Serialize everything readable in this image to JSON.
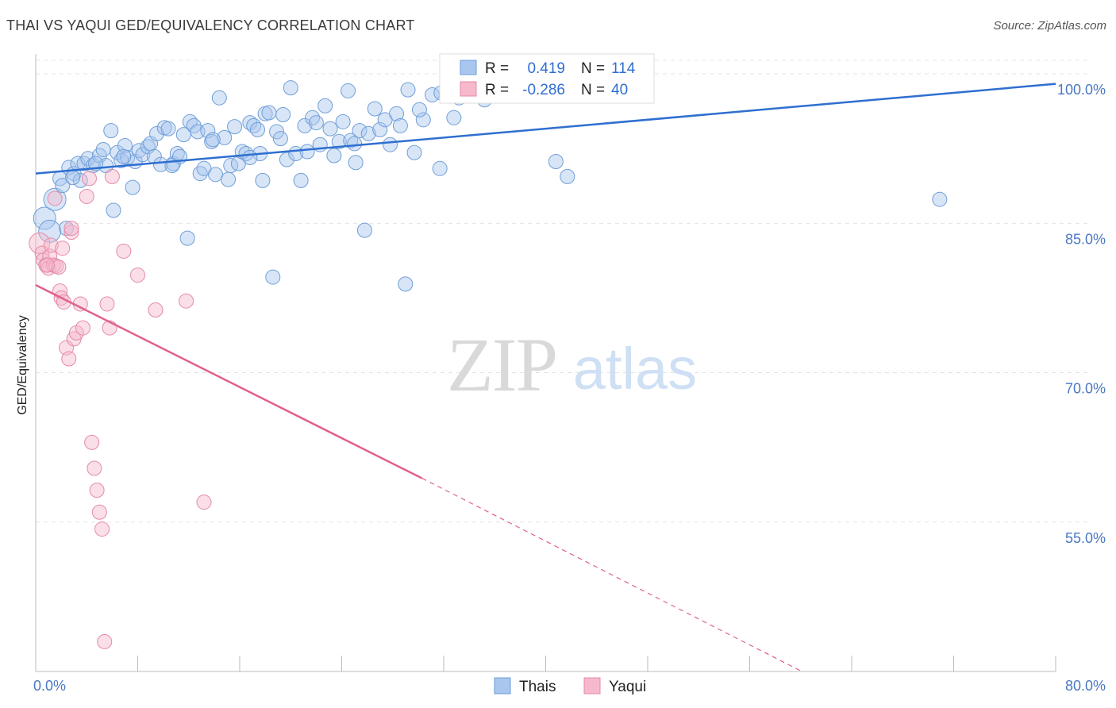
{
  "title": "THAI VS YAQUI GED/EQUIVALENCY CORRELATION CHART",
  "source": "Source: ZipAtlas.com",
  "watermark": {
    "zip": "ZIP",
    "atlas": "atlas"
  },
  "colors": {
    "thai_fill": "#a9c6ee",
    "thai_stroke": "#6f9fd8",
    "thai_line": "#2f6fd0",
    "yaqui_fill": "#f5b9cb",
    "yaqui_stroke": "#e58aa8",
    "yaqui_line": "#e0608e",
    "tick_text": "#4a78c2",
    "grid": "#e3e3e3"
  },
  "stats_legend": {
    "thai": {
      "r_label": "R =",
      "r_value": "0.419",
      "n_label": "N =",
      "n_value": "114"
    },
    "yaqui": {
      "r_label": "R =",
      "r_value": "-0.286",
      "n_label": "N =",
      "n_value": "40"
    }
  },
  "bottom_legend": {
    "thai": "Thais",
    "yaqui": "Yaqui"
  },
  "chart_data": {
    "type": "scatter",
    "xlabel": "",
    "ylabel": "GED/Equivalency",
    "xlim": [
      0,
      80
    ],
    "ylim": [
      40,
      102
    ],
    "x_tick_labels": [
      {
        "value": 0,
        "label": "0.0%"
      },
      {
        "value": 80,
        "label": "80.0%"
      }
    ],
    "y_tick_labels": [
      {
        "value": 100,
        "label": "100.0%"
      },
      {
        "value": 85,
        "label": "85.0%"
      },
      {
        "value": 70,
        "label": "70.0%"
      },
      {
        "value": 55,
        "label": "55.0%"
      }
    ],
    "grid": true,
    "legend_position": "top-center",
    "series": [
      {
        "name": "Thais",
        "r": 0.419,
        "n": 114,
        "trend": {
          "x": [
            0,
            80
          ],
          "y": [
            90.0,
            99.0
          ],
          "style": "solid"
        },
        "points": [
          [
            0.7,
            85.5
          ],
          [
            1.1,
            84.2
          ],
          [
            1.5,
            87.4
          ],
          [
            1.9,
            89.5
          ],
          [
            2.1,
            88.8
          ],
          [
            2.4,
            84.5
          ],
          [
            2.6,
            90.6
          ],
          [
            3.0,
            90.0
          ],
          [
            3.3,
            91.0
          ],
          [
            3.5,
            89.3
          ],
          [
            3.8,
            91.0
          ],
          [
            4.1,
            91.5
          ],
          [
            4.5,
            90.8
          ],
          [
            5.0,
            91.8
          ],
          [
            5.3,
            92.4
          ],
          [
            5.5,
            90.8
          ],
          [
            5.9,
            94.3
          ],
          [
            6.1,
            86.3
          ],
          [
            6.4,
            92.1
          ],
          [
            6.7,
            91.3
          ],
          [
            7.0,
            92.8
          ],
          [
            7.2,
            91.6
          ],
          [
            7.6,
            88.6
          ],
          [
            7.8,
            91.2
          ],
          [
            8.1,
            92.3
          ],
          [
            8.4,
            91.9
          ],
          [
            8.8,
            92.7
          ],
          [
            9.0,
            93.0
          ],
          [
            9.3,
            91.7
          ],
          [
            9.5,
            94.0
          ],
          [
            9.8,
            90.9
          ],
          [
            10.1,
            94.6
          ],
          [
            10.4,
            94.5
          ],
          [
            10.8,
            91.0
          ],
          [
            11.1,
            92.0
          ],
          [
            11.3,
            91.7
          ],
          [
            11.6,
            93.9
          ],
          [
            11.9,
            83.5
          ],
          [
            12.1,
            95.2
          ],
          [
            12.4,
            94.8
          ],
          [
            12.7,
            94.2
          ],
          [
            12.9,
            90.0
          ],
          [
            13.2,
            90.5
          ],
          [
            13.5,
            94.3
          ],
          [
            13.8,
            93.2
          ],
          [
            14.1,
            89.9
          ],
          [
            14.4,
            97.6
          ],
          [
            14.8,
            93.6
          ],
          [
            15.1,
            89.4
          ],
          [
            15.3,
            90.8
          ],
          [
            15.6,
            94.7
          ],
          [
            15.9,
            91.0
          ],
          [
            16.2,
            92.2
          ],
          [
            16.5,
            92.0
          ],
          [
            16.8,
            95.1
          ],
          [
            17.1,
            94.8
          ],
          [
            17.4,
            94.4
          ],
          [
            17.6,
            92.0
          ],
          [
            17.8,
            89.3
          ],
          [
            18.0,
            96.0
          ],
          [
            18.3,
            96.1
          ],
          [
            18.6,
            79.6
          ],
          [
            18.9,
            94.2
          ],
          [
            19.2,
            93.5
          ],
          [
            19.4,
            95.9
          ],
          [
            19.7,
            91.4
          ],
          [
            20.0,
            98.6
          ],
          [
            20.4,
            92.0
          ],
          [
            20.8,
            89.3
          ],
          [
            21.1,
            94.8
          ],
          [
            21.3,
            92.2
          ],
          [
            21.7,
            95.6
          ],
          [
            22.0,
            95.1
          ],
          [
            22.3,
            92.9
          ],
          [
            22.7,
            96.8
          ],
          [
            23.1,
            94.5
          ],
          [
            23.4,
            91.8
          ],
          [
            23.8,
            93.2
          ],
          [
            24.1,
            95.2
          ],
          [
            24.5,
            98.3
          ],
          [
            24.7,
            93.3
          ],
          [
            25.1,
            91.1
          ],
          [
            25.4,
            94.3
          ],
          [
            25.8,
            84.3
          ],
          [
            26.1,
            94.0
          ],
          [
            26.6,
            96.5
          ],
          [
            27.0,
            94.4
          ],
          [
            27.4,
            95.4
          ],
          [
            27.8,
            92.9
          ],
          [
            28.3,
            96.0
          ],
          [
            28.6,
            94.8
          ],
          [
            29.2,
            98.4
          ],
          [
            29.7,
            92.1
          ],
          [
            30.4,
            95.4
          ],
          [
            31.1,
            97.9
          ],
          [
            31.7,
            90.5
          ],
          [
            32.4,
            98.1
          ],
          [
            32.8,
            95.6
          ],
          [
            33.2,
            97.6
          ],
          [
            34.1,
            99.9
          ],
          [
            35.2,
            97.4
          ],
          [
            31.8,
            98.1
          ],
          [
            30.1,
            96.4
          ],
          [
            25.0,
            93.0
          ],
          [
            40.8,
            91.2
          ],
          [
            41.7,
            89.7
          ],
          [
            70.9,
            87.4
          ],
          [
            2.9,
            89.6
          ],
          [
            4.7,
            91.0
          ],
          [
            6.9,
            91.7
          ],
          [
            10.7,
            90.8
          ],
          [
            13.9,
            93.4
          ],
          [
            16.8,
            91.6
          ],
          [
            29.0,
            78.9
          ]
        ]
      },
      {
        "name": "Yaqui",
        "r": -0.286,
        "n": 40,
        "trend": {
          "x": [
            0,
            30.3,
            60.1
          ],
          "y": [
            78.8,
            59.4,
            40.0
          ],
          "style": "solid-then-dashed"
        },
        "points": [
          [
            0.3,
            83.0
          ],
          [
            0.5,
            82.0
          ],
          [
            0.6,
            81.3
          ],
          [
            0.8,
            80.8
          ],
          [
            1.0,
            80.5
          ],
          [
            1.1,
            81.7
          ],
          [
            1.2,
            82.8
          ],
          [
            1.4,
            80.8
          ],
          [
            1.6,
            80.7
          ],
          [
            1.8,
            80.6
          ],
          [
            1.9,
            78.2
          ],
          [
            2.0,
            77.5
          ],
          [
            2.2,
            77.1
          ],
          [
            2.4,
            72.5
          ],
          [
            2.6,
            71.4
          ],
          [
            2.8,
            84.1
          ],
          [
            3.0,
            73.4
          ],
          [
            3.2,
            74.0
          ],
          [
            3.5,
            76.9
          ],
          [
            3.7,
            74.5
          ],
          [
            4.0,
            87.7
          ],
          [
            4.2,
            89.5
          ],
          [
            4.4,
            63.0
          ],
          [
            4.6,
            60.4
          ],
          [
            4.8,
            58.2
          ],
          [
            5.0,
            56.0
          ],
          [
            5.2,
            54.3
          ],
          [
            5.4,
            43.0
          ],
          [
            5.6,
            76.9
          ],
          [
            5.8,
            74.5
          ],
          [
            6.0,
            89.7
          ],
          [
            6.9,
            82.2
          ],
          [
            8.0,
            79.8
          ],
          [
            9.4,
            76.3
          ],
          [
            11.8,
            77.2
          ],
          [
            13.2,
            57.0
          ],
          [
            1.5,
            87.5
          ],
          [
            2.1,
            82.5
          ],
          [
            0.9,
            80.8
          ],
          [
            2.8,
            84.5
          ]
        ]
      }
    ]
  }
}
